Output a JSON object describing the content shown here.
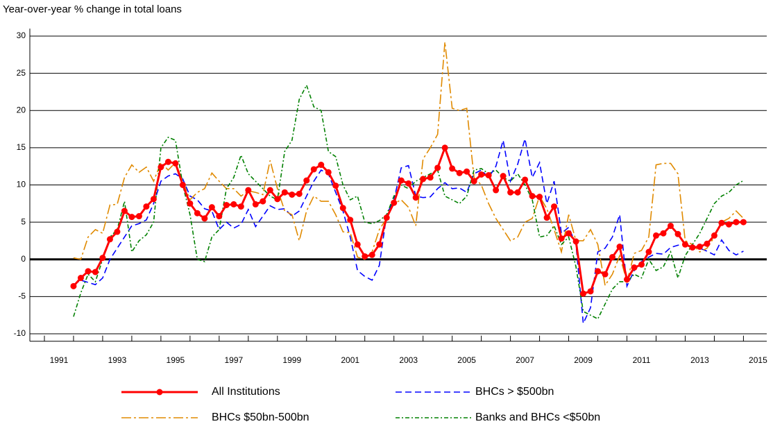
{
  "chart_data": {
    "type": "line",
    "title": "Year-over-year % change in total loans",
    "x": [
      1992,
      1992.25,
      1992.5,
      1992.75,
      1993,
      1993.25,
      1993.5,
      1993.75,
      1994,
      1994.25,
      1994.5,
      1994.75,
      1995,
      1995.25,
      1995.5,
      1995.75,
      1996,
      1996.25,
      1996.5,
      1996.75,
      1997,
      1997.25,
      1997.5,
      1997.75,
      1998,
      1998.25,
      1998.5,
      1998.75,
      1999,
      1999.25,
      1999.5,
      1999.75,
      2000,
      2000.25,
      2000.5,
      2000.75,
      2001,
      2001.25,
      2001.5,
      2001.75,
      2002,
      2002.25,
      2002.5,
      2002.75,
      2003,
      2003.25,
      2003.5,
      2003.75,
      2004,
      2004.25,
      2004.5,
      2004.75,
      2005,
      2005.25,
      2005.5,
      2005.75,
      2006,
      2006.25,
      2006.5,
      2006.75,
      2007,
      2007.25,
      2007.5,
      2007.75,
      2008,
      2008.25,
      2008.5,
      2008.75,
      2009,
      2009.25,
      2009.5,
      2009.75,
      2010,
      2010.25,
      2010.5,
      2010.75,
      2011,
      2011.25,
      2011.5,
      2011.75,
      2012,
      2012.25,
      2012.5,
      2012.75,
      2013,
      2013.25,
      2013.5,
      2013.75,
      2014,
      2014.25,
      2014.5,
      2014.75,
      2015
    ],
    "series": [
      {
        "name": "All Institutions",
        "color": "#ff0000",
        "dash": "solid",
        "marker": true,
        "values": [
          -3.6,
          -2.5,
          -1.6,
          -1.7,
          0.2,
          2.7,
          3.7,
          6.5,
          5.7,
          5.8,
          7.1,
          8.1,
          12.4,
          13.1,
          12.9,
          10.0,
          7.5,
          6.2,
          5.5,
          7.0,
          5.8,
          7.3,
          7.4,
          7.1,
          9.3,
          7.4,
          7.8,
          9.3,
          8.1,
          9.0,
          8.7,
          8.8,
          10.6,
          12.1,
          12.7,
          11.7,
          9.9,
          6.9,
          5.3,
          2.0,
          0.4,
          0.6,
          2.0,
          5.6,
          7.6,
          10.6,
          10.2,
          8.3,
          10.8,
          11.0,
          12.3,
          15.0,
          12.2,
          11.6,
          11.8,
          10.5,
          11.4,
          11.3,
          9.3,
          11.2,
          9.0,
          9.0,
          10.7,
          8.5,
          8.4,
          5.6,
          7.1,
          2.8,
          3.5,
          2.4,
          -4.6,
          -4.3,
          -1.6,
          -2.0,
          0.3,
          1.7,
          -2.7,
          -1.1,
          -0.7,
          1.0,
          3.2,
          3.5,
          4.5,
          3.4,
          2.0,
          1.6,
          1.7,
          2.1,
          3.2,
          4.9,
          4.7,
          5.0,
          5.0
        ]
      },
      {
        "name": "BHCs > $500bn",
        "color": "#0000ff",
        "dash": "dashed",
        "marker": false,
        "values": [
          -3.4,
          -2.8,
          -3.1,
          -3.4,
          -2.5,
          0.0,
          1.5,
          3.0,
          4.5,
          4.8,
          5.3,
          7.5,
          10.5,
          11.2,
          11.5,
          10.8,
          8.5,
          8.0,
          6.8,
          6.5,
          4.0,
          5.0,
          4.2,
          4.7,
          6.7,
          4.4,
          5.8,
          7.2,
          6.7,
          6.8,
          5.8,
          6.5,
          8.5,
          10.5,
          12.0,
          11.5,
          9.0,
          6.5,
          3.0,
          -1.5,
          -2.3,
          -2.8,
          -0.8,
          6.0,
          8.0,
          12.3,
          12.6,
          8.5,
          8.3,
          8.4,
          9.5,
          10.3,
          9.5,
          9.6,
          9.0,
          11.5,
          12.0,
          11.0,
          12.5,
          16.0,
          10.5,
          12.8,
          16.2,
          11.0,
          13.0,
          7.5,
          10.5,
          3.5,
          4.3,
          2.0,
          -8.6,
          -6.5,
          1.0,
          1.5,
          3.0,
          6.0,
          -3.6,
          -1.5,
          -0.3,
          0.3,
          0.8,
          0.7,
          1.6,
          1.9,
          2.0,
          1.8,
          1.5,
          1.1,
          0.6,
          2.6,
          1.2,
          0.6,
          1.1
        ]
      },
      {
        "name": "BHCs $50bn-500bn",
        "color": "#e08a00",
        "dash": "dashdot",
        "marker": false,
        "values": [
          0.2,
          0.0,
          3.0,
          4.0,
          3.5,
          7.3,
          7.4,
          11.0,
          12.7,
          11.7,
          12.4,
          10.5,
          13.0,
          12.0,
          13.0,
          10.5,
          8.0,
          9.0,
          9.5,
          11.6,
          10.5,
          9.5,
          9.5,
          8.5,
          9.2,
          9.0,
          8.7,
          13.3,
          9.5,
          6.5,
          6.0,
          2.5,
          6.5,
          8.5,
          7.8,
          7.8,
          6.0,
          3.7,
          3.6,
          0.3,
          0.0,
          1.0,
          4.0,
          5.5,
          7.5,
          8.0,
          7.0,
          4.5,
          13.5,
          15.0,
          16.8,
          29.2,
          20.3,
          20.0,
          20.3,
          11.0,
          10.0,
          7.5,
          5.5,
          4.0,
          2.5,
          3.0,
          5.0,
          5.5,
          8.5,
          6.8,
          4.0,
          1.0,
          6.0,
          2.5,
          2.5,
          4.0,
          2.0,
          -3.5,
          -2.0,
          0.5,
          -3.0,
          0.8,
          1.2,
          3.0,
          12.7,
          12.9,
          12.9,
          11.5,
          2.5,
          2.0,
          1.0,
          1.5,
          3.0,
          5.0,
          5.5,
          6.5,
          5.5
        ]
      },
      {
        "name": "Banks and BHCs <$50bn",
        "color": "#008000",
        "dash": "densedashdot",
        "marker": false,
        "values": [
          -7.7,
          -4.5,
          -2.0,
          -3.0,
          0.0,
          3.0,
          4.0,
          7.8,
          1.0,
          2.5,
          3.3,
          5.0,
          15.0,
          16.4,
          16.0,
          10.0,
          6.0,
          0.0,
          -0.3,
          3.0,
          4.0,
          9.5,
          11.0,
          14.0,
          11.5,
          10.5,
          9.5,
          8.5,
          8.0,
          14.5,
          16.0,
          21.5,
          23.4,
          20.5,
          20.0,
          14.5,
          13.8,
          10.0,
          8.0,
          8.5,
          5.0,
          4.8,
          5.2,
          6.0,
          8.5,
          10.0,
          9.5,
          10.5,
          11.0,
          11.5,
          12.0,
          8.5,
          8.0,
          7.5,
          8.5,
          12.0,
          12.2,
          11.5,
          12.0,
          11.0,
          10.5,
          11.5,
          10.0,
          8.0,
          3.0,
          3.2,
          4.5,
          2.0,
          3.0,
          -1.0,
          -7.0,
          -7.5,
          -8.0,
          -6.0,
          -4.0,
          -3.0,
          -3.0,
          -2.0,
          -2.5,
          0.0,
          -1.5,
          -1.0,
          1.0,
          -2.5,
          0.5,
          2.0,
          3.5,
          5.5,
          7.5,
          8.5,
          9.0,
          10.0,
          10.6
        ]
      }
    ],
    "xlim": [
      1990.5,
      2015.8
    ],
    "xticks": [
      {
        "value": 1991.5,
        "label": "1991"
      },
      {
        "value": 1993.5,
        "label": "1993"
      },
      {
        "value": 1995.5,
        "label": "1995"
      },
      {
        "value": 1997.5,
        "label": "1997"
      },
      {
        "value": 1999.5,
        "label": "1999"
      },
      {
        "value": 2001.5,
        "label": "2001"
      },
      {
        "value": 2003.5,
        "label": "2003"
      },
      {
        "value": 2005.5,
        "label": "2005"
      },
      {
        "value": 2007.5,
        "label": "2007"
      },
      {
        "value": 2009.5,
        "label": "2009"
      },
      {
        "value": 2011.5,
        "label": "2011"
      },
      {
        "value": 2013.5,
        "label": "2013"
      },
      {
        "value": 2015.5,
        "label": "2015"
      }
    ],
    "xminorticks": [
      1991,
      1992,
      1993,
      1994,
      1995,
      1996,
      1997,
      1998,
      1999,
      2000,
      2001,
      2002,
      2003,
      2004,
      2005,
      2006,
      2007,
      2008,
      2009,
      2010,
      2011,
      2012,
      2013,
      2014,
      2015
    ],
    "ylim": [
      -11,
      31
    ],
    "yticks": [
      -10,
      -5,
      0,
      5,
      10,
      15,
      20,
      25,
      30
    ],
    "grid": true,
    "legend": "bottom"
  }
}
